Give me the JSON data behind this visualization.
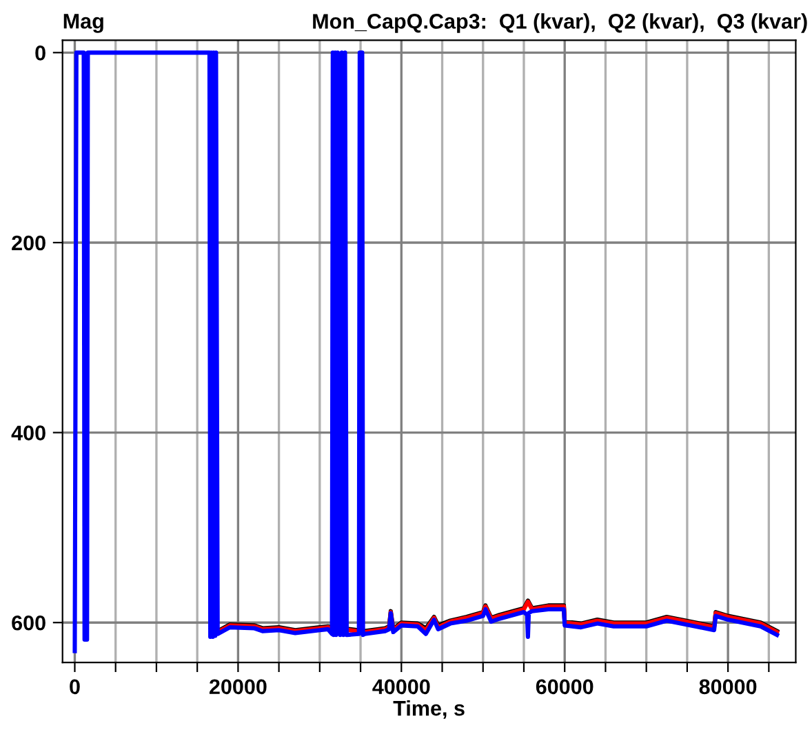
{
  "chart_data": {
    "type": "line",
    "title": "Mon_CapQ.Cap3:  Q1 (kvar),  Q2 (kvar),  Q3 (kvar)",
    "ylabel": "Mag",
    "xlabel": "Time, s",
    "xlim": [
      -1500,
      88300
    ],
    "ylim": [
      642,
      -13
    ],
    "xticks": [
      0,
      {
        "value": 5000,
        "label": null
      },
      {
        "value": 10000,
        "label": null
      },
      {
        "value": 15000,
        "label": null
      },
      20000,
      {
        "value": 25000,
        "label": null
      },
      {
        "value": 30000,
        "label": null
      },
      {
        "value": 35000,
        "label": null
      },
      40000,
      {
        "value": 45000,
        "label": null
      },
      {
        "value": 50000,
        "label": null
      },
      {
        "value": 55000,
        "label": null
      },
      60000,
      {
        "value": 65000,
        "label": null
      },
      {
        "value": 70000,
        "label": null
      },
      {
        "value": 75000,
        "label": null
      },
      80000,
      {
        "value": 85000,
        "label": null
      }
    ],
    "yticks": [
      0,
      200,
      400,
      600
    ],
    "grid": true,
    "line_style": "solid",
    "marker": "none",
    "series": [
      {
        "color": "#000000",
        "x": [
          17500,
          19000,
          22000,
          23000,
          25000,
          27000,
          30000,
          31000,
          35500,
          38000,
          38500,
          38700,
          39000,
          40000,
          42000,
          43000,
          44000,
          44500,
          46000,
          48000,
          50000,
          50300,
          51000,
          52000,
          55000,
          55500,
          56000,
          58000,
          59900,
          60000,
          62000,
          64000,
          66000,
          70000,
          72500,
          76000,
          78300,
          78500,
          80000,
          84000,
          86000
        ],
        "values": [
          609,
          602,
          603,
          606,
          605,
          608,
          605,
          604,
          609,
          606,
          604,
          588,
          607,
          600,
          601,
          606,
          594,
          603,
          598,
          594,
          589,
          582,
          595,
          592,
          585,
          577,
          585,
          582,
          582,
          599,
          601,
          597,
          600,
          600,
          594,
          600,
          604,
          589,
          593,
          600,
          609
        ]
      },
      {
        "color": "#ff0000",
        "x": [
          17500,
          19000,
          22000,
          23000,
          25000,
          27000,
          30000,
          31000,
          35500,
          38000,
          38500,
          38700,
          39000,
          40000,
          42000,
          43000,
          44000,
          44500,
          46000,
          48000,
          50000,
          50300,
          51000,
          52000,
          55000,
          55500,
          56000,
          58000,
          59900,
          60000,
          62000,
          64000,
          66000,
          70000,
          72500,
          76000,
          78300,
          78500,
          80000,
          84000,
          86000
        ],
        "values": [
          610,
          603,
          604,
          607,
          606,
          609,
          606,
          605,
          610,
          607,
          605,
          589,
          608,
          601,
          602,
          608,
          595,
          605,
          599,
          595,
          590,
          583,
          596,
          593,
          586,
          578,
          586,
          583,
          583,
          600,
          602,
          598,
          601,
          601,
          595,
          601,
          605,
          590,
          594,
          601,
          610
        ]
      },
      {
        "color": "#0000ff",
        "x": [
          0,
          200,
          1100,
          1200,
          1500,
          1600,
          16500,
          16600,
          16700,
          16900,
          17000,
          17200,
          17300,
          17500,
          19000,
          22000,
          23000,
          25000,
          27000,
          30000,
          31000,
          31500,
          31600,
          31700,
          31900,
          32000,
          32200,
          32500,
          32700,
          32900,
          33100,
          33300,
          34800,
          34900,
          35200,
          35300,
          35500,
          38000,
          38500,
          38700,
          39000,
          40000,
          42000,
          43000,
          44000,
          44500,
          46000,
          48000,
          50000,
          50300,
          51000,
          52000,
          55000,
          55400,
          55500,
          55600,
          56000,
          58000,
          59900,
          60000,
          62000,
          64000,
          66000,
          70000,
          72500,
          76000,
          78300,
          78500,
          80000,
          84000,
          86000
        ],
        "values": [
          630,
          0,
          0,
          618,
          618,
          0,
          0,
          615,
          0,
          615,
          0,
          614,
          0,
          612,
          605,
          606,
          609,
          608,
          611,
          608,
          607,
          612,
          0,
          613,
          0,
          613,
          0,
          613,
          0,
          613,
          0,
          613,
          612,
          0,
          0,
          613,
          612,
          609,
          607,
          590,
          610,
          603,
          604,
          612,
          597,
          607,
          601,
          598,
          593,
          586,
          599,
          596,
          589,
          592,
          615,
          590,
          588,
          586,
          586,
          603,
          605,
          601,
          604,
          604,
          598,
          604,
          608,
          593,
          597,
          604,
          613
        ]
      }
    ]
  }
}
